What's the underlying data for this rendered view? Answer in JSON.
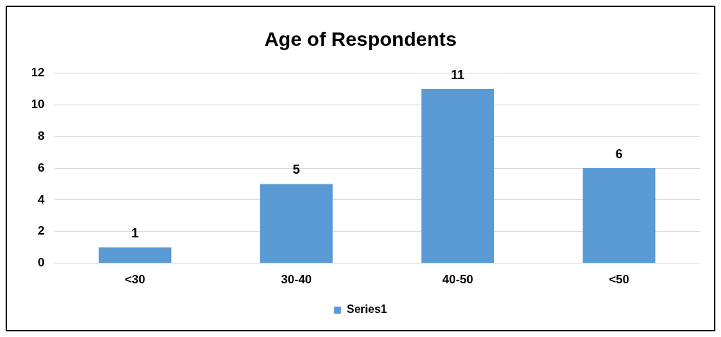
{
  "chart_data": {
    "type": "bar",
    "title": "Age of Respondents",
    "categories": [
      "<30",
      "30-40",
      "40-50",
      "<50"
    ],
    "series": [
      {
        "name": "Series1",
        "color": "#5b9bd5",
        "values": [
          1,
          5,
          11,
          6
        ]
      }
    ],
    "ylim": [
      0,
      12
    ],
    "yticks": [
      0,
      2,
      4,
      6,
      8,
      10,
      12
    ],
    "grid": "y",
    "legend": "bottom",
    "data_labels": true
  }
}
